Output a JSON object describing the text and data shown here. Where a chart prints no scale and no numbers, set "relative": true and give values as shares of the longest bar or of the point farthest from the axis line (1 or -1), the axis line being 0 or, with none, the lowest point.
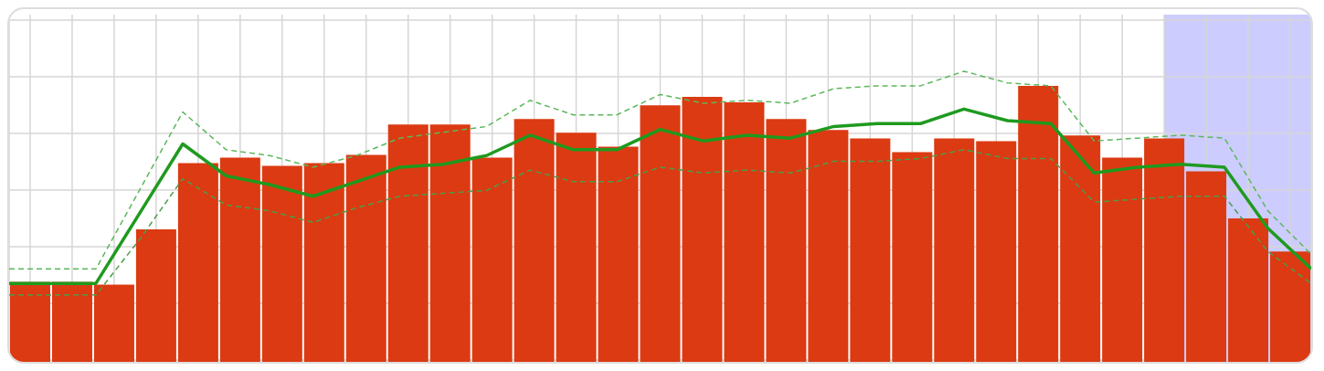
{
  "chart_data": [
    {
      "type": "bar",
      "relative": true,
      "grid": true,
      "categories": [
        null,
        null,
        null,
        null,
        null,
        null,
        null,
        null,
        null,
        null,
        null,
        null,
        null,
        null,
        null,
        null,
        null,
        null,
        null,
        null,
        null,
        null,
        null,
        null,
        null,
        null,
        null,
        null,
        null,
        null,
        null
      ],
      "series": [
        {
          "color": "#dc3a12",
          "values": [
            0.29,
            0.29,
            0.28,
            0.48,
            0.72,
            0.74,
            0.71,
            0.72,
            0.75,
            0.86,
            0.86,
            0.74,
            0.88,
            0.83,
            0.78,
            0.93,
            0.96,
            0.94,
            0.88,
            0.84,
            0.81,
            0.76,
            0.81,
            0.8,
            1,
            0.82,
            0.74,
            0.81,
            0.69,
            0.52,
            0.4
          ]
        }
      ]
    },
    {
      "type": "line",
      "relative": true,
      "categories": [
        null,
        null,
        null,
        null,
        null,
        null,
        null,
        null,
        null,
        null,
        null,
        null,
        null,
        null,
        null,
        null,
        null,
        null,
        null,
        null,
        null,
        null,
        null,
        null,
        null,
        null,
        null,
        null,
        null,
        null,
        null
      ],
      "series": [
        {
          "color": "#1f9a1f",
          "line_style": "solid",
          "values": [
            0.27,
            0.27,
            0.27,
            0.51,
            0.75,
            0.64,
            0.61,
            0.57,
            0.62,
            0.67,
            0.68,
            0.71,
            0.78,
            0.73,
            0.73,
            0.8,
            0.76,
            0.78,
            0.77,
            0.81,
            0.82,
            0.82,
            0.87,
            0.83,
            0.82,
            0.65,
            0.67,
            0.68,
            0.67,
            0.46,
            0.32
          ]
        },
        {
          "color": "#5cb85c",
          "line_style": "dashed",
          "values": [
            0.32,
            0.32,
            0.32,
            0.59,
            0.86,
            0.73,
            0.71,
            0.67,
            0.71,
            0.77,
            0.79,
            0.81,
            0.9,
            0.85,
            0.85,
            0.92,
            0.89,
            0.9,
            0.89,
            0.94,
            0.95,
            0.95,
            1,
            0.96,
            0.95,
            0.76,
            0.77,
            0.78,
            0.77,
            0.52,
            0.37
          ]
        },
        {
          "color": "#4a9e4a",
          "line_style": "dashed",
          "values": [
            0.23,
            0.23,
            0.23,
            0.42,
            0.63,
            0.54,
            0.52,
            0.48,
            0.53,
            0.57,
            0.58,
            0.59,
            0.66,
            0.62,
            0.62,
            0.67,
            0.65,
            0.66,
            0.65,
            0.69,
            0.69,
            0.7,
            0.73,
            0.7,
            0.7,
            0.55,
            0.56,
            0.57,
            0.57,
            0.38,
            0.27
          ]
        }
      ]
    }
  ]
}
